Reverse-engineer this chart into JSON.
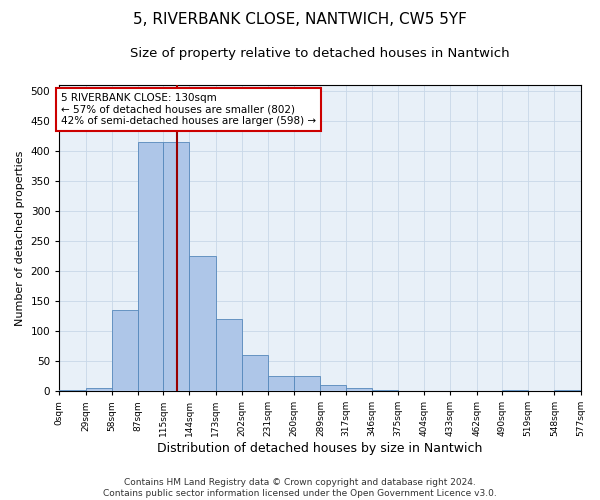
{
  "title1": "5, RIVERBANK CLOSE, NANTWICH, CW5 5YF",
  "title2": "Size of property relative to detached houses in Nantwich",
  "xlabel": "Distribution of detached houses by size in Nantwich",
  "ylabel": "Number of detached properties",
  "bin_edges": [
    0,
    29,
    58,
    87,
    115,
    144,
    173,
    202,
    231,
    260,
    289,
    317,
    346,
    375,
    404,
    433,
    462,
    490,
    519,
    548,
    577
  ],
  "bar_heights": [
    2,
    5,
    135,
    415,
    415,
    225,
    120,
    60,
    25,
    25,
    10,
    5,
    2,
    0,
    0,
    0,
    0,
    2,
    0,
    2
  ],
  "bar_color": "#aec6e8",
  "bar_edge_color": "#5588bb",
  "property_size": 130,
  "vline_color": "#990000",
  "annotation_text": "5 RIVERBANK CLOSE: 130sqm\n← 57% of detached houses are smaller (802)\n42% of semi-detached houses are larger (598) →",
  "annotation_box_color": "white",
  "annotation_box_edge_color": "#cc0000",
  "grid_color": "#c8d8e8",
  "background_color": "#e8f0f8",
  "footer_text": "Contains HM Land Registry data © Crown copyright and database right 2024.\nContains public sector information licensed under the Open Government Licence v3.0.",
  "ylim": [
    0,
    510
  ],
  "yticks": [
    0,
    50,
    100,
    150,
    200,
    250,
    300,
    350,
    400,
    450,
    500
  ],
  "title1_fontsize": 11,
  "title2_fontsize": 9.5,
  "xlabel_fontsize": 9,
  "ylabel_fontsize": 8,
  "annotation_fontsize": 7.5,
  "footer_fontsize": 6.5,
  "tick_labels": [
    "0sqm",
    "29sqm",
    "58sqm",
    "87sqm",
    "115sqm",
    "144sqm",
    "173sqm",
    "202sqm",
    "231sqm",
    "260sqm",
    "289sqm",
    "317sqm",
    "346sqm",
    "375sqm",
    "404sqm",
    "433sqm",
    "462sqm",
    "490sqm",
    "519sqm",
    "548sqm",
    "577sqm"
  ]
}
